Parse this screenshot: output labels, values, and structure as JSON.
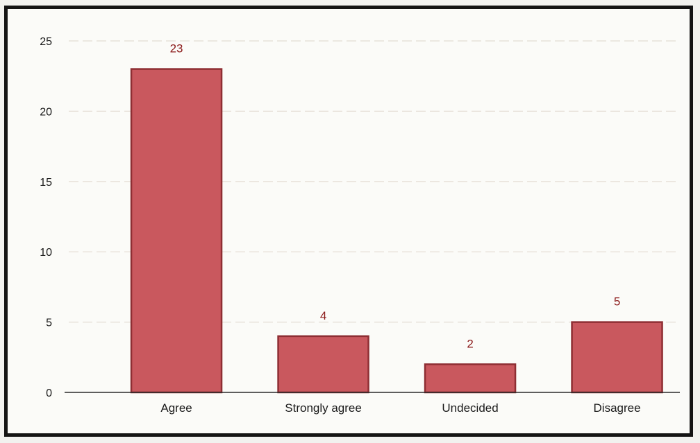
{
  "chart_data": {
    "type": "bar",
    "categories": [
      "Agree",
      "Strongly agree",
      "Undecided",
      "Disagree"
    ],
    "values": [
      23,
      4,
      2,
      5
    ],
    "data_labels": [
      "23",
      "4",
      "2",
      "5"
    ],
    "ylim": [
      0,
      25
    ],
    "yticks": [
      0,
      5,
      10,
      15,
      20,
      25
    ],
    "grid": true,
    "legend": "none",
    "colors": {
      "bar_fill": "#c9585e",
      "bar_stroke": "#8e2e33",
      "grid": "#e3dcd3",
      "axis": "#2a2a2a",
      "data_label": "#8b1a1a"
    }
  }
}
